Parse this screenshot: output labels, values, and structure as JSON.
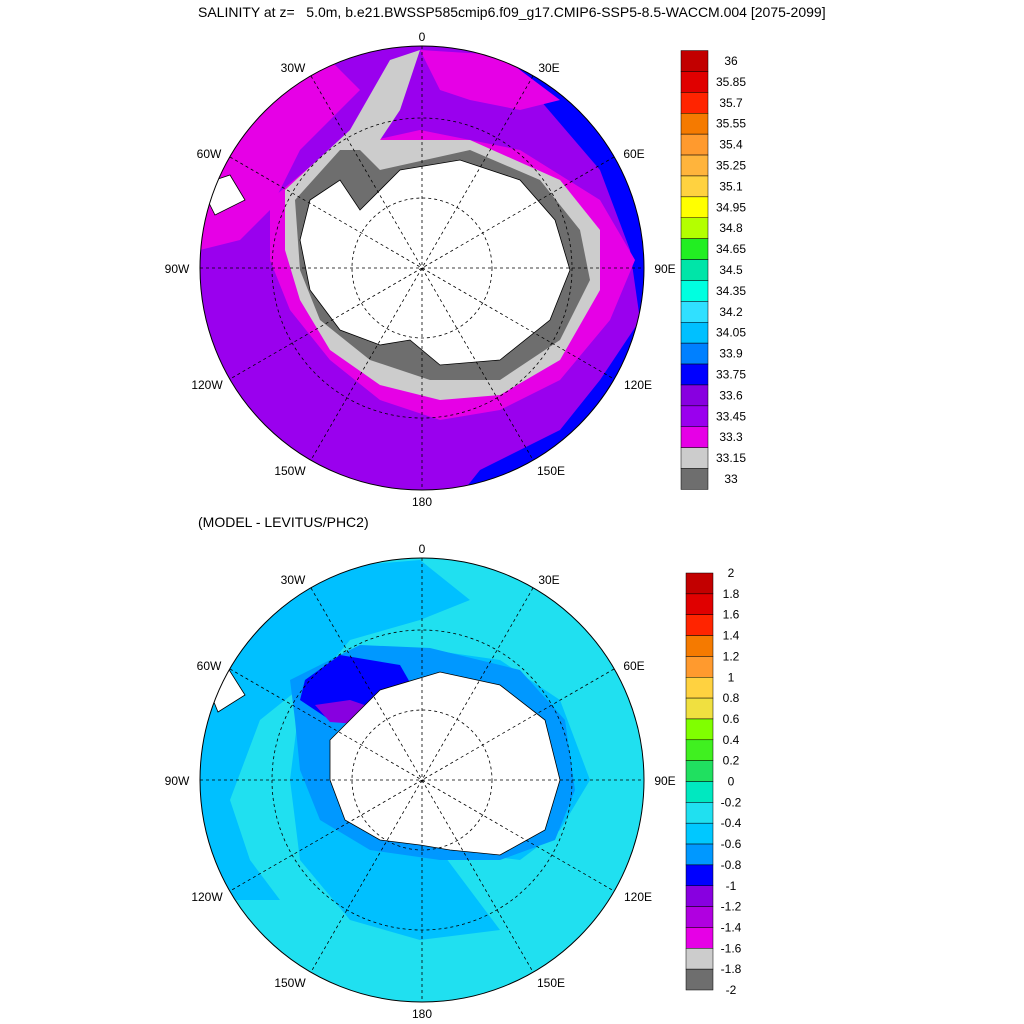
{
  "title": "SALINITY at z=   5.0m, b.e21.BWSSP585cmip6.f09_g17.CMIP6-SSP5-8.5-WACCM.004 [2075-2099]",
  "subtitle": "(MODEL - LEVITUS/PHC2)",
  "longitude_labels": {
    "top": "0",
    "top_right": "30E",
    "right_upper": "60E",
    "right": "90E",
    "right_lower": "120E",
    "bottom_right": "150E",
    "bottom": "180",
    "bottom_left": "150W",
    "left_lower": "120W",
    "left": "90W",
    "left_upper": "60W",
    "top_left": "30W"
  },
  "colorbar_top": {
    "labels": [
      "36",
      "35.85",
      "35.7",
      "35.55",
      "35.4",
      "35.25",
      "35.1",
      "34.95",
      "34.8",
      "34.65",
      "34.5",
      "34.35",
      "34.2",
      "34.05",
      "33.9",
      "33.75",
      "33.6",
      "33.45",
      "33.3",
      "33.15",
      "33"
    ],
    "colors": [
      "#c20000",
      "#e00000",
      "#ff2400",
      "#f57a00",
      "#ff9a2e",
      "#ffb43c",
      "#ffd240",
      "#ffff00",
      "#b4ff00",
      "#22ee22",
      "#00e5a8",
      "#00ffe0",
      "#30e0ff",
      "#00c0ff",
      "#0080ff",
      "#0000ff",
      "#8800e0",
      "#9a00ee",
      "#e600e6",
      "#cccccc",
      "#6e6e6e"
    ]
  },
  "colorbar_bottom": {
    "labels": [
      "2",
      "1.8",
      "1.6",
      "1.4",
      "1.2",
      "1",
      "0.8",
      "0.6",
      "0.4",
      "0.2",
      "0",
      "-0.2",
      "-0.4",
      "-0.6",
      "-0.8",
      "-1",
      "-1.2",
      "-1.4",
      "-1.6",
      "-1.8",
      "-2"
    ],
    "colors": [
      "#c20000",
      "#e00000",
      "#ff2400",
      "#f57a00",
      "#ff9a2e",
      "#ffd240",
      "#f0e040",
      "#80ff00",
      "#40f020",
      "#20e060",
      "#00e8c0",
      "#20e0f0",
      "#00c8ff",
      "#0098ff",
      "#0000ff",
      "#8800e0",
      "#b000e0",
      "#e600e6",
      "#cccccc",
      "#6e6e6e"
    ]
  },
  "map_colors": {
    "land": "#ffffff",
    "top_dominant": "#9a00ee",
    "top_magenta": "#e600e6",
    "top_blue": "#0000ff",
    "top_lightgray": "#cccccc",
    "top_darkgray": "#6e6e6e",
    "bottom_dominant": "#20e0f0",
    "bottom_mid": "#00c0ff",
    "bottom_dark": "#0098ff",
    "bottom_blue": "#0000ff"
  }
}
